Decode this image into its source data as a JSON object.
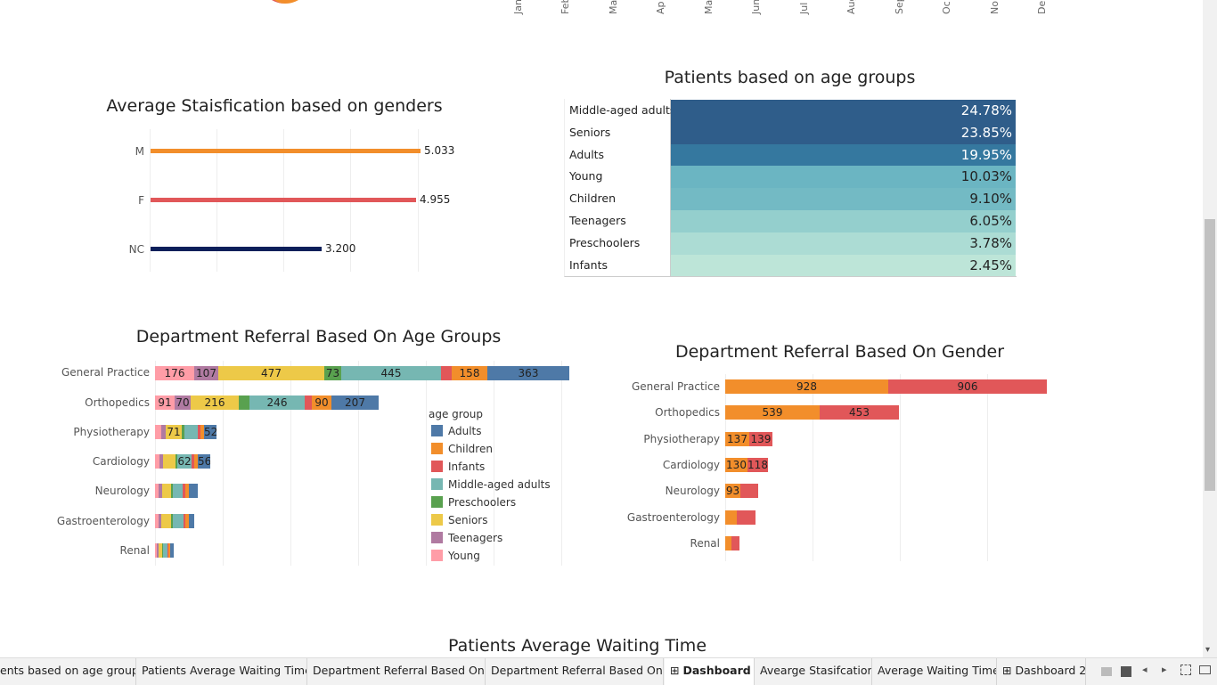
{
  "top_months": [
    "Jan",
    "Feb",
    "Ma",
    "Ap",
    "May",
    "Jun",
    "Jul",
    "Aug",
    "Sep",
    "Oc",
    "No",
    "De"
  ],
  "satisfaction": {
    "title": "Average Staisfication based on genders",
    "rows": [
      {
        "label": "M",
        "value": "5.033",
        "num": 5.033,
        "color": "#f28e2b"
      },
      {
        "label": "F",
        "value": "4.955",
        "num": 4.955,
        "color": "#e15759"
      },
      {
        "label": "NC",
        "value": "3.200",
        "num": 3.2,
        "color": "#0c1f5a"
      }
    ]
  },
  "age_table": {
    "title": "Patients based on age groups",
    "rows": [
      {
        "label": "Middle-aged adults",
        "value": "24.78%",
        "color": "#2f5d8a",
        "text_color": "#ffffff"
      },
      {
        "label": "Seniors",
        "value": "23.85%",
        "color": "#2f5d8a",
        "text_color": "#ffffff"
      },
      {
        "label": "Adults",
        "value": "19.95%",
        "color": "#35789f",
        "text_color": "#ffffff"
      },
      {
        "label": "Young",
        "value": "10.03%",
        "color": "#6bb5c2",
        "text_color": "#222222"
      },
      {
        "label": "Children",
        "value": "9.10%",
        "color": "#73bac4",
        "text_color": "#222222"
      },
      {
        "label": "Teenagers",
        "value": "6.05%",
        "color": "#94cfcd",
        "text_color": "#222222"
      },
      {
        "label": "Preschoolers",
        "value": "3.78%",
        "color": "#acdcd4",
        "text_color": "#222222"
      },
      {
        "label": "Infants",
        "value": "2.45%",
        "color": "#bde5d8",
        "text_color": "#222222"
      }
    ]
  },
  "dept_age": {
    "title": "Department Referral Based On Age Groups",
    "legend_title": "age group",
    "legend": [
      {
        "name": "Adults",
        "color": "#4e79a7"
      },
      {
        "name": "Children",
        "color": "#f28e2b"
      },
      {
        "name": "Infants",
        "color": "#e15759"
      },
      {
        "name": "Middle-aged adults",
        "color": "#76b7b2"
      },
      {
        "name": "Preschoolers",
        "color": "#59a14f"
      },
      {
        "name": "Seniors",
        "color": "#edc948"
      },
      {
        "name": "Teenagers",
        "color": "#b07aa1"
      },
      {
        "name": "Young",
        "color": "#ff9da7"
      }
    ],
    "departments": [
      "General Practice",
      "Orthopedics",
      "Physiotherapy",
      "Cardiology",
      "Neurology",
      "Gastroenterology",
      "Renal"
    ]
  },
  "dept_gender": {
    "title": "Department Referral Based On Gender",
    "departments": [
      {
        "name": "General Practice",
        "m": "928",
        "f": "906"
      },
      {
        "name": "Orthopedics",
        "m": "539",
        "f": "453"
      },
      {
        "name": "Physiotherapy",
        "m": "137",
        "f": "139"
      },
      {
        "name": "Cardiology",
        "m": "130",
        "f": "118"
      },
      {
        "name": "Neurology",
        "m": "93",
        "f": ""
      },
      {
        "name": "Gastroenterology",
        "m": "",
        "f": ""
      },
      {
        "name": "Renal",
        "m": "",
        "f": ""
      }
    ]
  },
  "waiting": {
    "title": "Patients Average Waiting Time"
  },
  "tabs": [
    "ents based on age groups",
    "Patients Average Waiting Time",
    "Department Referral Based On ...",
    "Department Referral Based On ...",
    "Dashboard 1",
    "Avearge Stasifcation",
    "Average Waiting Time",
    "Dashboard 2"
  ]
}
